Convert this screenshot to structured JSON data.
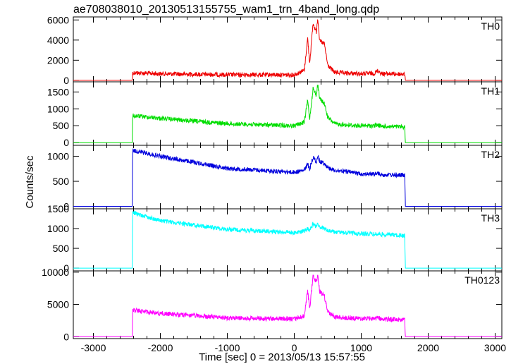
{
  "chart_data": {
    "type": "line",
    "title": "ae708038010_20130513155755_wam1_trn_4band_long.qdp",
    "xlabel": "Time [sec] 0 = 2013/05/13 15:57:55",
    "ylabel": "Counts/sec",
    "xlim": [
      -3300,
      3100
    ],
    "xticks": [
      -3000,
      -2000,
      -1000,
      0,
      1000,
      2000,
      3000
    ],
    "grid": false,
    "panels": [
      {
        "name": "TH0",
        "color": "#ee0000",
        "ylim": [
          -150,
          6300
        ],
        "yticks": [
          0,
          2000,
          4000,
          6000
        ],
        "x": [
          -3300,
          -2420,
          -2415,
          -2000,
          -1000,
          0,
          150,
          200,
          230,
          280,
          330,
          350,
          380,
          450,
          500,
          600,
          800,
          1000,
          1200,
          1250,
          1300,
          1400,
          1650,
          1660,
          3100
        ],
        "y": [
          0,
          0,
          750,
          650,
          550,
          550,
          1000,
          4200,
          1700,
          5600,
          4800,
          6300,
          3900,
          3600,
          1500,
          800,
          700,
          650,
          700,
          1000,
          650,
          650,
          600,
          0,
          0
        ]
      },
      {
        "name": "TH1",
        "color": "#00dd00",
        "ylim": [
          -80,
          1800
        ],
        "yticks": [
          0,
          500,
          1000,
          1500
        ],
        "x": [
          -3300,
          -2420,
          -2415,
          -2000,
          -1000,
          0,
          150,
          200,
          230,
          280,
          330,
          350,
          380,
          450,
          500,
          600,
          800,
          1000,
          1200,
          1250,
          1300,
          1400,
          1650,
          1660,
          3100
        ],
        "y": [
          0,
          0,
          800,
          720,
          560,
          500,
          600,
          1250,
          700,
          1600,
          1400,
          1750,
          1300,
          1150,
          750,
          560,
          520,
          500,
          500,
          520,
          480,
          480,
          460,
          0,
          0
        ]
      },
      {
        "name": "TH2",
        "color": "#0000dd",
        "ylim": [
          -50,
          1220
        ],
        "yticks": [
          0,
          500,
          1000
        ],
        "x": [
          -3300,
          -2420,
          -2415,
          -2000,
          -1000,
          0,
          150,
          200,
          230,
          280,
          330,
          350,
          380,
          450,
          500,
          600,
          800,
          1000,
          1200,
          1250,
          1300,
          1400,
          1650,
          1660,
          3100
        ],
        "y": [
          0,
          0,
          1120,
          1000,
          760,
          680,
          720,
          850,
          750,
          980,
          900,
          1000,
          900,
          860,
          780,
          720,
          690,
          650,
          640,
          660,
          630,
          630,
          620,
          0,
          0
        ]
      },
      {
        "name": "TH3",
        "color": "#00ffff",
        "ylim": [
          -70,
          1500
        ],
        "yticks": [
          0,
          500,
          1000,
          1500
        ],
        "x": [
          -3300,
          -2420,
          -2415,
          -2000,
          -1000,
          0,
          150,
          200,
          230,
          280,
          330,
          350,
          380,
          450,
          500,
          600,
          800,
          1000,
          1200,
          1250,
          1300,
          1400,
          1650,
          1660,
          3100
        ],
        "y": [
          0,
          0,
          1400,
          1200,
          980,
          900,
          930,
          1000,
          950,
          1120,
          1060,
          1100,
          1040,
          1000,
          950,
          910,
          890,
          870,
          860,
          860,
          850,
          850,
          820,
          0,
          0
        ]
      },
      {
        "name": "TH0123",
        "color": "#ff00ff",
        "ylim": [
          -300,
          10200
        ],
        "yticks": [
          0,
          5000,
          10000
        ],
        "x": [
          -3300,
          -2420,
          -2415,
          -2000,
          -1000,
          0,
          150,
          200,
          230,
          280,
          330,
          350,
          380,
          450,
          500,
          600,
          800,
          1000,
          1200,
          1250,
          1300,
          1400,
          1650,
          1660,
          3100
        ],
        "y": [
          0,
          0,
          4100,
          3600,
          2900,
          2750,
          3200,
          7300,
          4200,
          9400,
          8400,
          9800,
          7000,
          6300,
          3800,
          3100,
          2900,
          2800,
          2800,
          3000,
          2700,
          2700,
          2600,
          0,
          0
        ]
      }
    ]
  }
}
